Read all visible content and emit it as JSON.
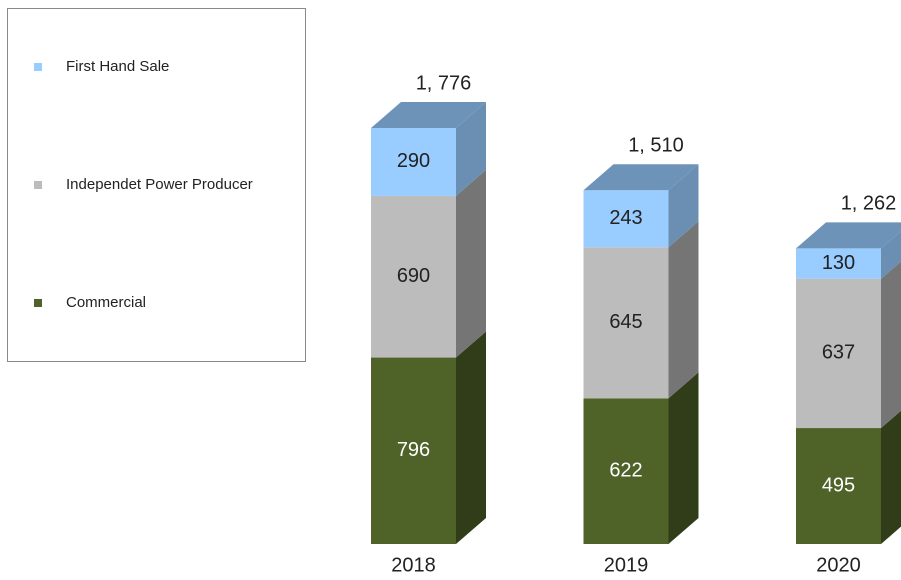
{
  "chart_data": {
    "type": "stacked_bar_3d",
    "categories": [
      "2018",
      "2019",
      "2020"
    ],
    "series": [
      {
        "name": "Commercial",
        "color": "#4f6228",
        "values": [
          796,
          622,
          495
        ]
      },
      {
        "name": "Independet Power Producer",
        "color": "#bcbcbc",
        "values": [
          690,
          645,
          637
        ]
      },
      {
        "name": "First Hand Sale",
        "color": "#99ccff",
        "values": [
          290,
          243,
          130
        ]
      }
    ],
    "totals": [
      1776,
      1510,
      1262
    ],
    "total_value_labels": [
      "1, 776",
      "1, 510",
      "1, 262"
    ]
  }
}
